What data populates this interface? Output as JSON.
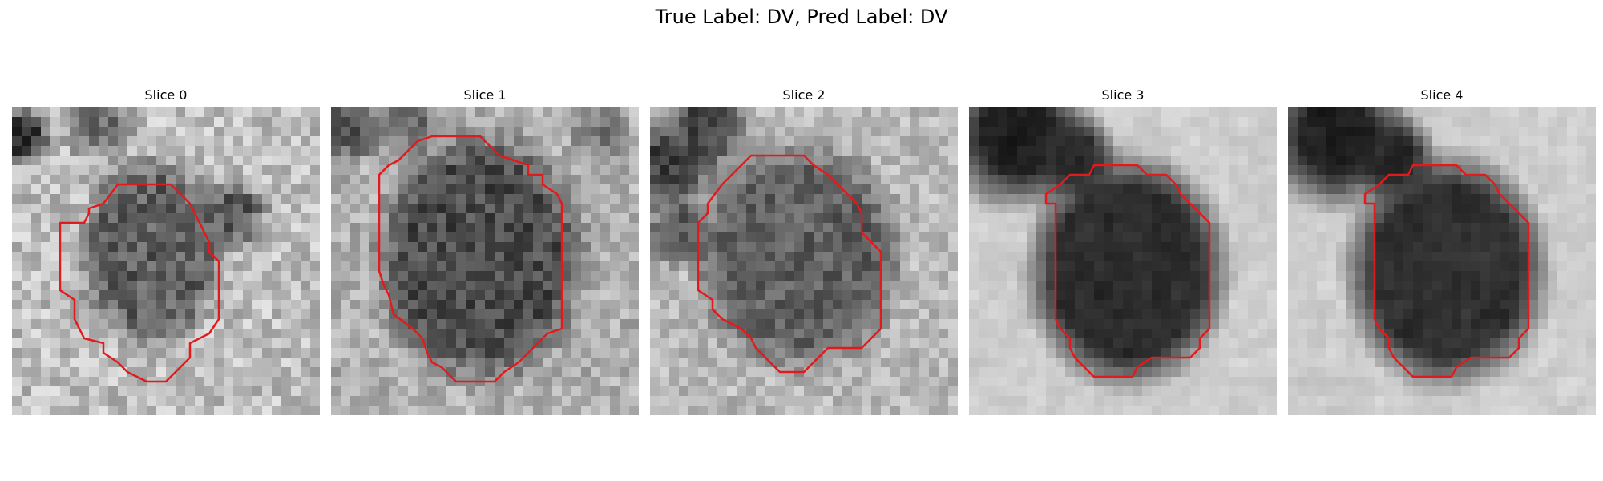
{
  "figure": {
    "title": "True Label: DV, Pred Label: DV"
  },
  "panels": [
    {
      "title": "Slice 0"
    },
    {
      "title": "Slice 1"
    },
    {
      "title": "Slice 2"
    },
    {
      "title": "Slice 3"
    },
    {
      "title": "Slice 4"
    }
  ],
  "colors": {
    "contour": "#e31a1c",
    "background": "#ffffff"
  }
}
